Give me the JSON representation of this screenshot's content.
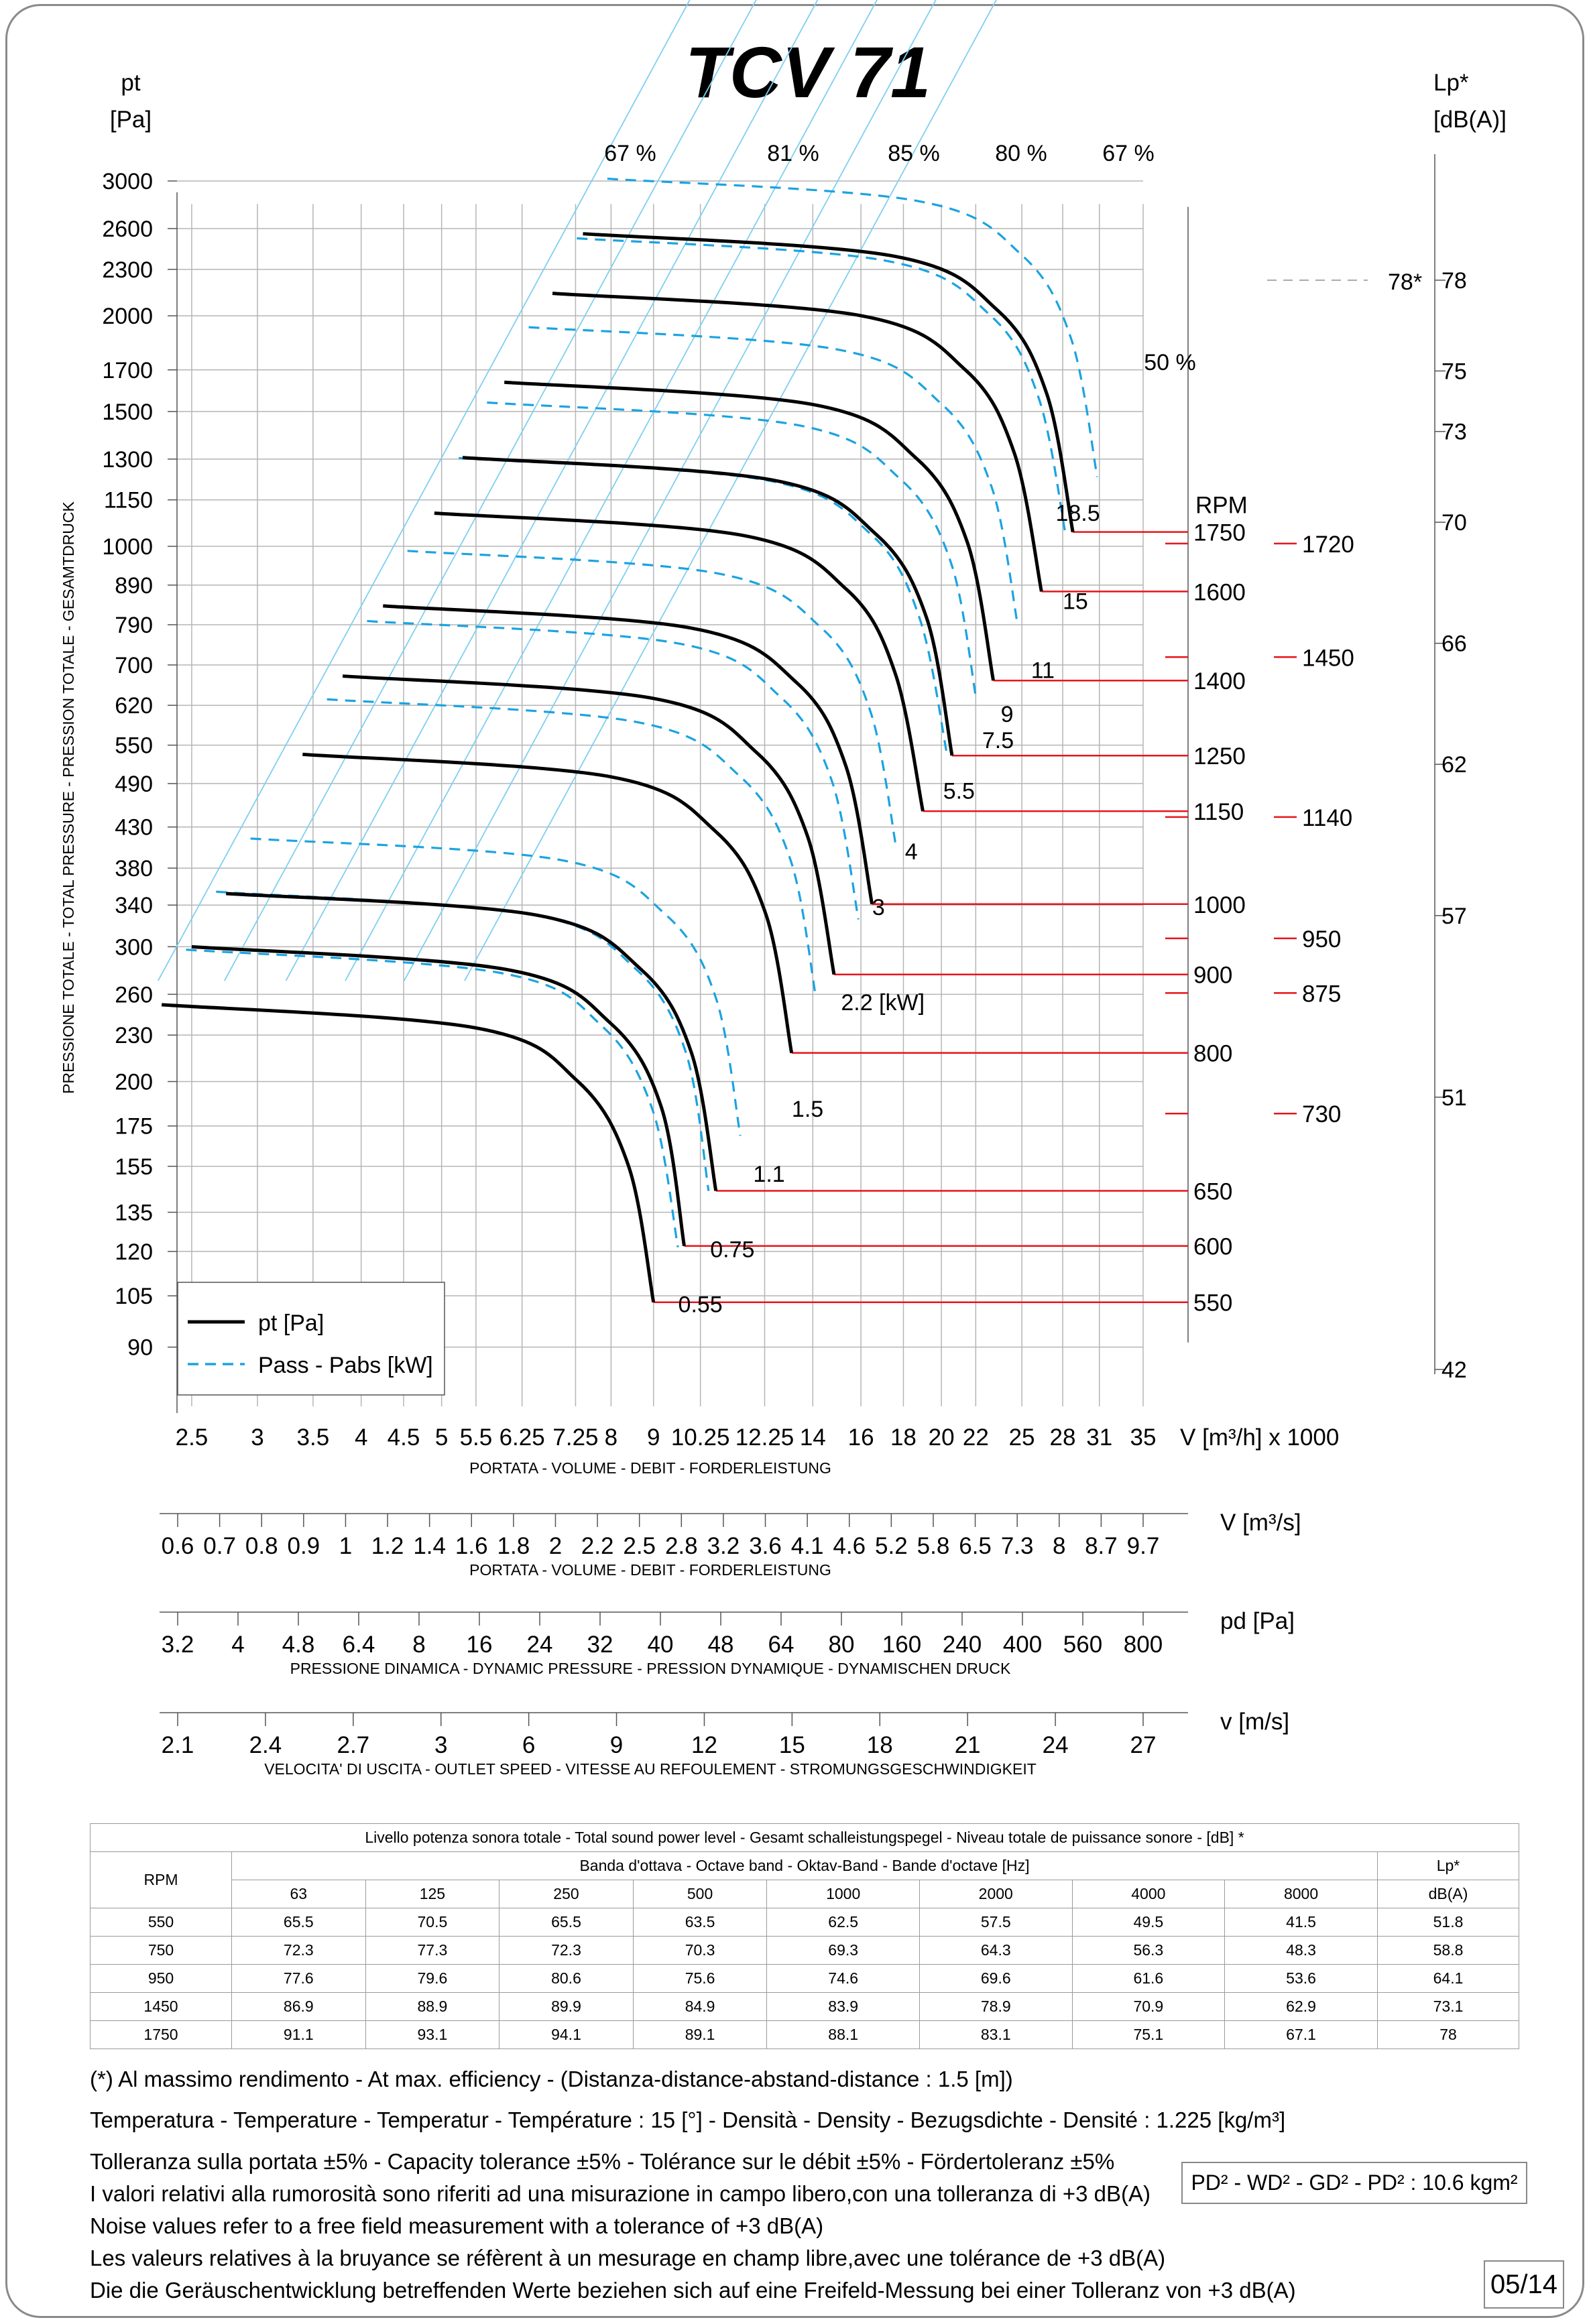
{
  "title": "TCV 71",
  "colors": {
    "pt_curve": "#000000",
    "power_curve": "#1ba3e0",
    "rpm_line": "#e8141c",
    "grid": "#b5b5b5",
    "efficiency_line": "#7fcff0",
    "frame": "#8a8a8a"
  },
  "chart_data": {
    "type": "line",
    "title": "TCV 71",
    "x_axis": {
      "label": "V [m³/h]  x 1000",
      "scale": "log",
      "ticks": [
        2.5,
        3,
        3.5,
        4,
        4.5,
        5,
        5.5,
        6.25,
        7.25,
        8,
        9,
        10.25,
        12.25,
        14,
        16,
        18,
        20,
        22,
        25,
        28,
        31,
        35
      ],
      "tick_labels": [
        "2.5",
        "3",
        "3.5",
        "4",
        "4.5",
        "5",
        "5.5",
        "6.25",
        "7.25",
        "8",
        "9",
        "10.25",
        "12.25",
        "14",
        "16",
        "18",
        "20",
        "22",
        "25",
        "28",
        "31",
        "35"
      ],
      "caption": "PORTATA - VOLUME - DEBIT - FORDERLEISTUNG"
    },
    "y_axis": {
      "label": "pt [Pa]",
      "scale": "log",
      "vertical_caption": "PRESSIONE TOTALE - TOTAL PRESSURE - PRESSION TOTALE - GESAMTDRUCK",
      "tick_labels": [
        "3000",
        "2600",
        "2300",
        "2000",
        "1700",
        "1500",
        "1300",
        "1150",
        "1000",
        "890",
        "790",
        "700",
        "620",
        "550",
        "490",
        "430",
        "380",
        "340",
        "300",
        "260",
        "230",
        "200",
        "175",
        "155",
        "135",
        "120",
        "105",
        "90"
      ]
    },
    "lp_axis": {
      "label": "Lp* [dB(A)]",
      "tick_labels": [
        "78",
        "75",
        "73",
        "70",
        "66",
        "62",
        "57",
        "51",
        "42"
      ]
    },
    "efficiency_labels": [
      "67 %",
      "81 %",
      "85 %",
      "80 %",
      "67 %",
      "50 %"
    ],
    "series": [
      {
        "name": "pt [Pa]",
        "style": "solid"
      },
      {
        "name": "Pass - Pabs [kW]",
        "style": "dashed"
      }
    ],
    "pt_curves": [
      {
        "rpm": "550",
        "points": [
          [
            2.3,
            252
          ],
          [
            5.5,
            235
          ],
          [
            7.3,
            200
          ],
          [
            8.4,
            155
          ],
          [
            9.0,
            103
          ]
        ]
      },
      {
        "rpm": "600",
        "points": [
          [
            2.5,
            300
          ],
          [
            6.0,
            280
          ],
          [
            8.0,
            238
          ],
          [
            9.2,
            185
          ],
          [
            9.8,
            122
          ]
        ]
      },
      {
        "rpm": "650",
        "points": [
          [
            2.75,
            352
          ],
          [
            6.5,
            330
          ],
          [
            8.7,
            280
          ],
          [
            10.0,
            218
          ],
          [
            10.7,
            144
          ]
        ]
      },
      {
        "rpm": "800",
        "points": [
          [
            3.4,
            535
          ],
          [
            8.0,
            500
          ],
          [
            10.7,
            424
          ],
          [
            12.3,
            330
          ],
          [
            13.2,
            218
          ]
        ]
      },
      {
        "rpm": "900",
        "points": [
          [
            3.8,
            677
          ],
          [
            9.0,
            633
          ],
          [
            12.0,
            537
          ],
          [
            13.8,
            418
          ],
          [
            14.85,
            276
          ]
        ]
      },
      {
        "rpm": "1000",
        "points": [
          [
            4.25,
            836
          ],
          [
            10.0,
            782
          ],
          [
            13.4,
            663
          ],
          [
            15.35,
            516
          ],
          [
            16.5,
            341
          ]
        ]
      },
      {
        "rpm": "1150",
        "points": [
          [
            4.9,
            1105
          ],
          [
            11.5,
            1034
          ],
          [
            15.4,
            877
          ],
          [
            17.6,
            682
          ],
          [
            19.0,
            451
          ]
        ]
      },
      {
        "rpm": "1250",
        "points": [
          [
            5.3,
            1306
          ],
          [
            12.5,
            1221
          ],
          [
            16.7,
            1036
          ],
          [
            19.2,
            806
          ],
          [
            20.6,
            533
          ]
        ]
      },
      {
        "rpm": "1400",
        "points": [
          [
            5.95,
            1638
          ],
          [
            14.0,
            1532
          ],
          [
            18.7,
            1300
          ],
          [
            21.5,
            1011
          ],
          [
            23.1,
            668
          ]
        ]
      },
      {
        "rpm": "1600",
        "points": [
          [
            6.8,
            2140
          ],
          [
            16.0,
            2001
          ],
          [
            21.4,
            1698
          ],
          [
            24.5,
            1321
          ],
          [
            26.4,
            873
          ]
        ]
      },
      {
        "rpm": "1750",
        "points": [
          [
            7.4,
            2560
          ],
          [
            17.5,
            2394
          ],
          [
            23.4,
            2031
          ],
          [
            26.8,
            1580
          ],
          [
            28.8,
            1044
          ]
        ]
      }
    ],
    "power_labels": [
      "0.55",
      "0.75",
      "1.1",
      "1.5",
      "2.2  [kW]",
      "3",
      "4",
      "5.5",
      "7.5",
      "9",
      "11",
      "15",
      "18.5"
    ],
    "power_label_points": [
      [
        10.25,
        100
      ],
      [
        11.2,
        118
      ],
      [
        12.4,
        148
      ],
      [
        13.8,
        180
      ],
      [
        17.0,
        248
      ],
      [
        16.8,
        330
      ],
      [
        18.4,
        390
      ],
      [
        21.0,
        468
      ],
      [
        23.4,
        545
      ],
      [
        24.0,
        590
      ],
      [
        26.5,
        673
      ],
      [
        29.0,
        828
      ],
      [
        29.2,
        1080
      ]
    ],
    "rpm_labels": [
      "550",
      "600",
      "650",
      "800",
      "900",
      "1000",
      "1150",
      "1250",
      "1400",
      "1600",
      "1750"
    ],
    "rpm_values": [
      550,
      600,
      650,
      800,
      900,
      1000,
      1150,
      1250,
      1400,
      1600,
      1750
    ],
    "rpm_header": "RPM",
    "motor_rpm_labels": [
      "730",
      "875",
      "950",
      "1140",
      "1450",
      "1720"
    ],
    "motor_rpm_values": [
      730,
      875,
      950,
      1140,
      1450,
      1720
    ],
    "lp_star_annotation": "78*",
    "legend": {
      "position": "bottom-left",
      "entries": [
        "pt [Pa]",
        "Pass - Pabs [kW]"
      ]
    }
  },
  "scales": [
    {
      "label": "V  [m³/s]",
      "caption": "PORTATA - VOLUME - DEBIT - FORDERLEISTUNG",
      "tick_labels": [
        "0.6",
        "0.7",
        "0.8",
        "0.9",
        "1",
        "1.2",
        "1.4",
        "1.6",
        "1.8",
        "2",
        "2.2",
        "2.5",
        "2.8",
        "3.2",
        "3.6",
        "4.1",
        "4.6",
        "5.2",
        "5.8",
        "6.5",
        "7.3",
        "8",
        "8.7",
        "9.7"
      ]
    },
    {
      "label": "pd  [Pa]",
      "caption": "PRESSIONE DINAMICA - DYNAMIC PRESSURE - PRESSION DYNAMIQUE - DYNAMISCHEN DRUCK",
      "tick_labels": [
        "3.2",
        "4",
        "4.8",
        "6.4",
        "8",
        "16",
        "24",
        "32",
        "40",
        "48",
        "64",
        "80",
        "160",
        "240",
        "400",
        "560",
        "800"
      ]
    },
    {
      "label": "v  [m/s]",
      "caption": "VELOCITA' DI USCITA - OUTLET SPEED - VITESSE AU REFOULEMENT - STROMUNGSGESCHWINDIGKEIT",
      "tick_labels": [
        "2.1",
        "2.4",
        "2.7",
        "3",
        "6",
        "9",
        "12",
        "15",
        "18",
        "21",
        "24",
        "27"
      ]
    }
  ],
  "sound_table": {
    "title": "Livello potenza sonora totale - Total sound power level - Gesamt schalleistungspegel - Niveau totale de puissance sonore - [dB]   *",
    "band_header": "Banda d'ottava - Octave band - Oktav-Band - Bande d'octave [Hz]",
    "rpm_header": "RPM",
    "lp_header": "Lp*",
    "lp_unit": "dB(A)",
    "bands": [
      "63",
      "125",
      "250",
      "500",
      "1000",
      "2000",
      "4000",
      "8000"
    ],
    "rows": [
      {
        "rpm": "550",
        "values": [
          "65.5",
          "70.5",
          "65.5",
          "63.5",
          "62.5",
          "57.5",
          "49.5",
          "41.5"
        ],
        "lp": "51.8"
      },
      {
        "rpm": "750",
        "values": [
          "72.3",
          "77.3",
          "72.3",
          "70.3",
          "69.3",
          "64.3",
          "56.3",
          "48.3"
        ],
        "lp": "58.8"
      },
      {
        "rpm": "950",
        "values": [
          "77.6",
          "79.6",
          "80.6",
          "75.6",
          "74.6",
          "69.6",
          "61.6",
          "53.6"
        ],
        "lp": "64.1"
      },
      {
        "rpm": "1450",
        "values": [
          "86.9",
          "88.9",
          "89.9",
          "84.9",
          "83.9",
          "78.9",
          "70.9",
          "62.9"
        ],
        "lp": "73.1"
      },
      {
        "rpm": "1750",
        "values": [
          "91.1",
          "93.1",
          "94.1",
          "89.1",
          "88.1",
          "83.1",
          "75.1",
          "67.1"
        ],
        "lp": "78"
      }
    ]
  },
  "notes": {
    "efficiency": "(*) Al massimo rendimento - At max. efficiency - (Distanza-distance-abstand-distance : 1.5 [m])",
    "temperature": "Temperatura - Temperature - Temperatur - Température : 15 [°]  -  Densità - Density - Bezugsdichte - Densité : 1.225 [kg/m³]",
    "tolerance": "Tolleranza sulla portata  ±5% - Capacity tolerance ±5% - Tolérance sur le débit ±5% - Fördertoleranz ±5%",
    "noise_it": "I valori relativi alla rumorosità sono riferiti ad una misurazione in campo libero,con una tolleranza di +3 dB(A)",
    "noise_en": "Noise values refer to a free field measurement with a tolerance of +3 dB(A)",
    "noise_fr": "Les valeurs relatives à la bruyance se réfèrent à un mesurage en champ libre,avec une tolérance de +3 dB(A)",
    "noise_de": "Die die Geräuschentwicklung betreffenden Werte beziehen sich auf eine Freifeld-Messung bei einer Tolleranz von +3 dB(A)",
    "pd2": "PD² -  WD² - GD² - PD²  :  10.6 kgm²",
    "page": "05/14"
  }
}
